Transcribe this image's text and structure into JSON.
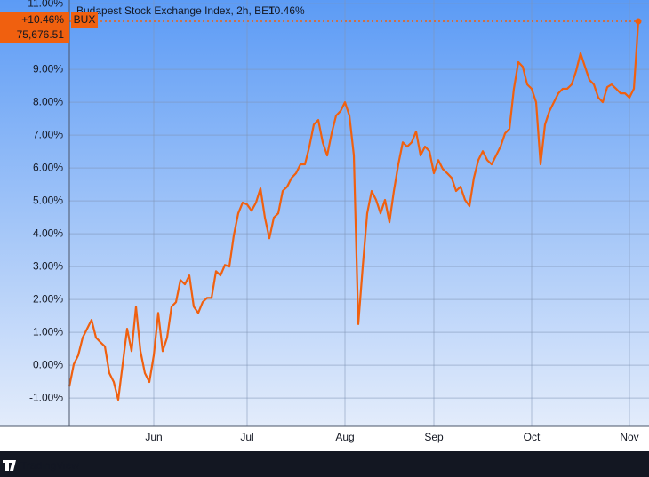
{
  "chart_data": {
    "type": "line",
    "title": "Budapest Stock Exchange Index, 2h, BET",
    "last_label": "10.46%",
    "change_label": "+10.46%",
    "symbol": "BUX",
    "price_label": "75,676.51",
    "footer": "TradingView",
    "categories": [
      null,
      null,
      null,
      null,
      null,
      null,
      null,
      null,
      null,
      null,
      null,
      null,
      null,
      null,
      null,
      null,
      null,
      null,
      null,
      "Jun",
      null,
      null,
      null,
      null,
      null,
      null,
      null,
      null,
      null,
      null,
      null,
      null,
      null,
      null,
      null,
      null,
      null,
      null,
      null,
      null,
      "Jul",
      null,
      null,
      null,
      null,
      null,
      null,
      null,
      null,
      null,
      null,
      null,
      null,
      null,
      null,
      null,
      null,
      null,
      null,
      null,
      null,
      null,
      "Aug",
      null,
      null,
      null,
      null,
      null,
      null,
      null,
      null,
      null,
      null,
      null,
      null,
      null,
      null,
      null,
      null,
      null,
      null,
      null,
      "Sep",
      null,
      null,
      null,
      null,
      null,
      null,
      null,
      null,
      null,
      null,
      null,
      null,
      null,
      null,
      null,
      null,
      null,
      null,
      null,
      null,
      null,
      "Oct",
      null,
      null,
      null,
      null,
      null,
      null,
      null,
      null,
      null,
      null,
      null,
      null,
      null,
      null,
      null,
      null,
      null,
      null,
      null,
      null,
      null,
      "Nov",
      null,
      null
    ],
    "series": [
      {
        "name": "BUX",
        "color": "#f0600f",
        "values": [
          -0.65,
          0.03,
          0.3,
          0.84,
          1.11,
          1.38,
          0.84,
          0.7,
          0.57,
          -0.24,
          -0.51,
          -1.05,
          0.03,
          1.11,
          0.43,
          1.78,
          0.43,
          -0.24,
          -0.51,
          0.3,
          1.59,
          0.43,
          0.84,
          1.78,
          1.92,
          2.59,
          2.46,
          2.73,
          1.78,
          1.59,
          1.92,
          2.05,
          2.05,
          2.86,
          2.73,
          3.05,
          3.0,
          3.95,
          4.62,
          4.95,
          4.89,
          4.7,
          4.95,
          5.38,
          4.49,
          3.86,
          4.49,
          4.62,
          5.3,
          5.43,
          5.7,
          5.84,
          6.11,
          6.11,
          6.65,
          7.32,
          7.46,
          6.78,
          6.38,
          7.05,
          7.59,
          7.73,
          8.0,
          7.59,
          6.38,
          1.25,
          3.0,
          4.62,
          5.3,
          5.03,
          4.62,
          5.03,
          4.35,
          5.3,
          6.11,
          6.78,
          6.65,
          6.78,
          7.11,
          6.38,
          6.65,
          6.51,
          5.84,
          6.24,
          5.97,
          5.84,
          5.7,
          5.3,
          5.43,
          5.03,
          4.84,
          5.7,
          6.24,
          6.51,
          6.24,
          6.11,
          6.38,
          6.65,
          7.05,
          7.19,
          8.41,
          9.22,
          9.08,
          8.54,
          8.41,
          8.0,
          6.11,
          7.32,
          7.73,
          8.0,
          8.27,
          8.41,
          8.41,
          8.54,
          8.95,
          9.49,
          9.08,
          8.68,
          8.54,
          8.14,
          8.0,
          8.46,
          8.54,
          8.41,
          8.27,
          8.27,
          8.14,
          8.41,
          10.46
        ]
      }
    ],
    "ylim": [
      -1.86,
      11.11
    ],
    "yticks": [
      {
        "value": -1,
        "label": "-1.00%"
      },
      {
        "value": 0,
        "label": "0.00%"
      },
      {
        "value": 1,
        "label": "1.00%"
      },
      {
        "value": 2,
        "label": "2.00%"
      },
      {
        "value": 3,
        "label": "3.00%"
      },
      {
        "value": 4,
        "label": "4.00%"
      },
      {
        "value": 5,
        "label": "5.00%"
      },
      {
        "value": 6,
        "label": "6.00%"
      },
      {
        "value": 7,
        "label": "7.00%"
      },
      {
        "value": 8,
        "label": "8.00%"
      },
      {
        "value": 9,
        "label": "9.00%"
      },
      {
        "value": 11,
        "label": "11.00%"
      }
    ],
    "grid": true
  }
}
